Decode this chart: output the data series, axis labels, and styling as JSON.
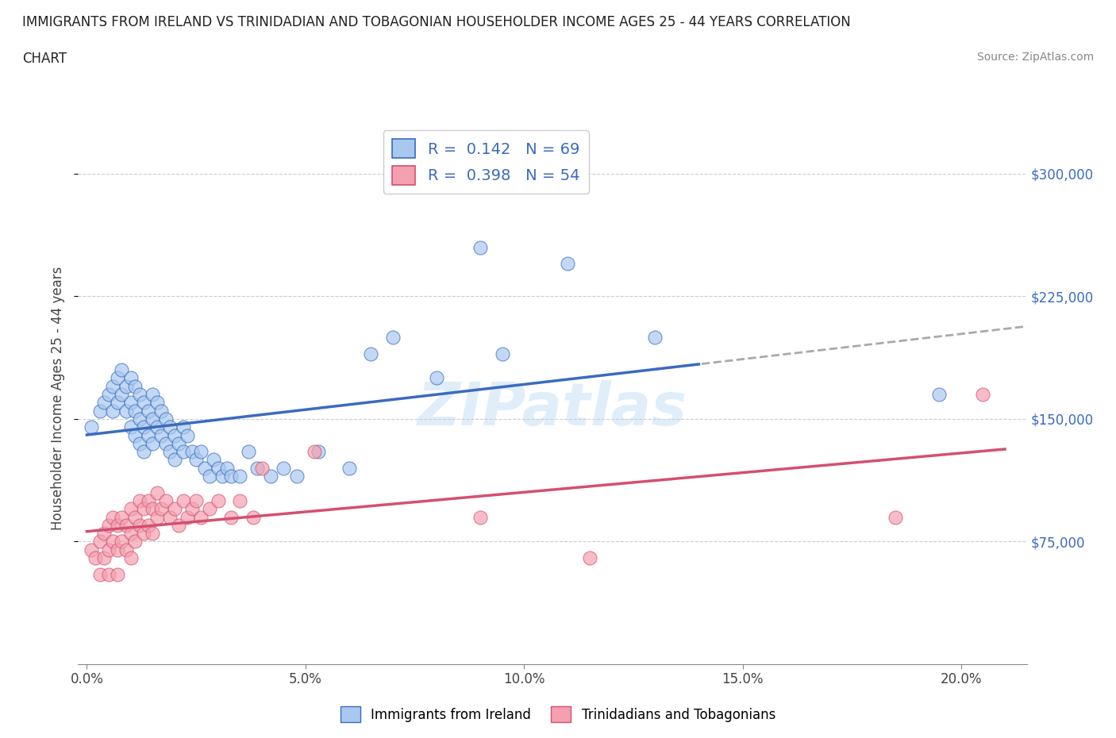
{
  "title_line1": "IMMIGRANTS FROM IRELAND VS TRINIDADIAN AND TOBAGONIAN HOUSEHOLDER INCOME AGES 25 - 44 YEARS CORRELATION",
  "title_line2": "CHART",
  "source": "Source: ZipAtlas.com",
  "ylabel": "Householder Income Ages 25 - 44 years",
  "xlabel_ticks": [
    "0.0%",
    "5.0%",
    "10.0%",
    "15.0%",
    "20.0%"
  ],
  "xlabel_vals": [
    0.0,
    0.05,
    0.1,
    0.15,
    0.2
  ],
  "ytick_labels": [
    "$75,000",
    "$150,000",
    "$225,000",
    "$300,000"
  ],
  "ytick_vals": [
    75000,
    150000,
    225000,
    300000
  ],
  "xlim": [
    -0.002,
    0.215
  ],
  "ylim": [
    0,
    325000
  ],
  "ireland_R": 0.142,
  "ireland_N": 69,
  "trini_R": 0.398,
  "trini_N": 54,
  "ireland_color": "#a8c8f0",
  "trini_color": "#f4a0b0",
  "ireland_line_color": "#3a6bbf",
  "trini_line_color": "#d45070",
  "trend_dash_color": "#aaaaaa",
  "background_color": "#ffffff",
  "grid_color": "#cccccc",
  "ireland_x": [
    0.001,
    0.003,
    0.004,
    0.005,
    0.006,
    0.006,
    0.007,
    0.007,
    0.008,
    0.008,
    0.009,
    0.009,
    0.01,
    0.01,
    0.01,
    0.011,
    0.011,
    0.011,
    0.012,
    0.012,
    0.012,
    0.013,
    0.013,
    0.013,
    0.014,
    0.014,
    0.015,
    0.015,
    0.015,
    0.016,
    0.016,
    0.017,
    0.017,
    0.018,
    0.018,
    0.019,
    0.019,
    0.02,
    0.02,
    0.021,
    0.022,
    0.022,
    0.023,
    0.024,
    0.025,
    0.026,
    0.027,
    0.028,
    0.029,
    0.03,
    0.031,
    0.032,
    0.033,
    0.035,
    0.037,
    0.039,
    0.042,
    0.045,
    0.048,
    0.053,
    0.06,
    0.065,
    0.07,
    0.08,
    0.09,
    0.095,
    0.11,
    0.13,
    0.195
  ],
  "ireland_y": [
    145000,
    155000,
    160000,
    165000,
    170000,
    155000,
    175000,
    160000,
    180000,
    165000,
    170000,
    155000,
    175000,
    160000,
    145000,
    170000,
    155000,
    140000,
    165000,
    150000,
    135000,
    160000,
    145000,
    130000,
    155000,
    140000,
    165000,
    150000,
    135000,
    160000,
    145000,
    155000,
    140000,
    150000,
    135000,
    145000,
    130000,
    140000,
    125000,
    135000,
    145000,
    130000,
    140000,
    130000,
    125000,
    130000,
    120000,
    115000,
    125000,
    120000,
    115000,
    120000,
    115000,
    115000,
    130000,
    120000,
    115000,
    120000,
    115000,
    130000,
    120000,
    190000,
    200000,
    175000,
    255000,
    190000,
    245000,
    200000,
    165000
  ],
  "trini_x": [
    0.001,
    0.002,
    0.003,
    0.003,
    0.004,
    0.004,
    0.005,
    0.005,
    0.005,
    0.006,
    0.006,
    0.007,
    0.007,
    0.007,
    0.008,
    0.008,
    0.009,
    0.009,
    0.01,
    0.01,
    0.01,
    0.011,
    0.011,
    0.012,
    0.012,
    0.013,
    0.013,
    0.014,
    0.014,
    0.015,
    0.015,
    0.016,
    0.016,
    0.017,
    0.018,
    0.019,
    0.02,
    0.021,
    0.022,
    0.023,
    0.024,
    0.025,
    0.026,
    0.028,
    0.03,
    0.033,
    0.035,
    0.038,
    0.04,
    0.052,
    0.09,
    0.115,
    0.185,
    0.205
  ],
  "trini_y": [
    70000,
    65000,
    75000,
    55000,
    80000,
    65000,
    85000,
    70000,
    55000,
    90000,
    75000,
    85000,
    70000,
    55000,
    90000,
    75000,
    85000,
    70000,
    95000,
    80000,
    65000,
    90000,
    75000,
    100000,
    85000,
    95000,
    80000,
    100000,
    85000,
    95000,
    80000,
    105000,
    90000,
    95000,
    100000,
    90000,
    95000,
    85000,
    100000,
    90000,
    95000,
    100000,
    90000,
    95000,
    100000,
    90000,
    100000,
    90000,
    120000,
    130000,
    90000,
    65000,
    90000,
    165000
  ]
}
